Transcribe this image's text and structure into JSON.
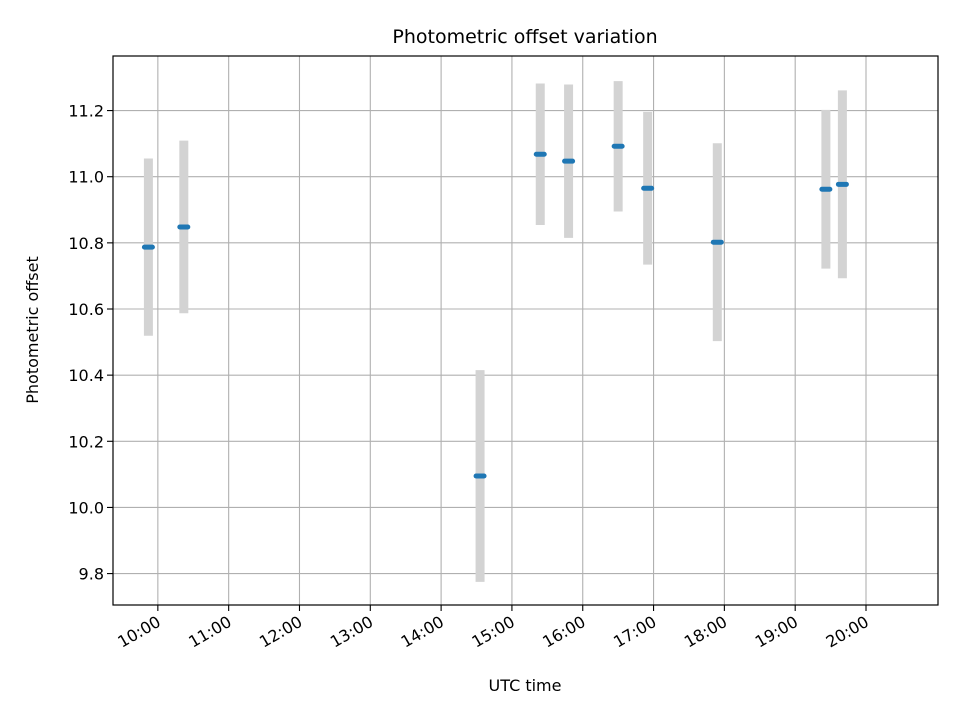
{
  "chart_data": {
    "type": "scatter",
    "title": "Photometric offset variation",
    "xlabel": "UTC time",
    "ylabel": "Photometric offset",
    "x_ticks": [
      "10:00",
      "11:00",
      "12:00",
      "13:00",
      "14:00",
      "15:00",
      "16:00",
      "17:00",
      "18:00",
      "19:00",
      "20:00"
    ],
    "y_ticks": [
      "9.8",
      "10.0",
      "10.2",
      "10.4",
      "10.6",
      "10.8",
      "11.0",
      "11.2"
    ],
    "xlim": [
      "09:22",
      "21:01"
    ],
    "ylim": [
      9.705,
      11.365
    ],
    "grid": true,
    "series": [
      {
        "marker_color": "#1f77b4",
        "errorbar_color": "#d3d3d3",
        "points": [
          {
            "x": "09:52",
            "y": 10.787,
            "yerr": 0.268
          },
          {
            "x": "10:22",
            "y": 10.848,
            "yerr": 0.261
          },
          {
            "x": "14:33",
            "y": 10.095,
            "yerr": 0.32
          },
          {
            "x": "15:24",
            "y": 11.068,
            "yerr": 0.214
          },
          {
            "x": "15:48",
            "y": 11.047,
            "yerr": 0.232
          },
          {
            "x": "16:30",
            "y": 11.092,
            "yerr": 0.197
          },
          {
            "x": "16:55",
            "y": 10.965,
            "yerr": 0.231
          },
          {
            "x": "17:54",
            "y": 10.802,
            "yerr": 0.299
          },
          {
            "x": "19:26",
            "y": 10.962,
            "yerr": 0.24
          },
          {
            "x": "19:40",
            "y": 10.977,
            "yerr": 0.284
          }
        ]
      }
    ]
  }
}
